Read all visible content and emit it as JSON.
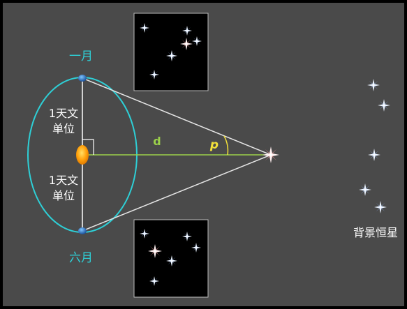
{
  "labels": {
    "january": "一月",
    "june": "六月",
    "au_top": [
      "1天文",
      "单位"
    ],
    "au_bottom": [
      "1天文",
      "单位"
    ],
    "distance": "d",
    "parallax": "p",
    "background_stars": "背景恒星"
  },
  "colors": {
    "background": "#4a4a4a",
    "frame": "#000000",
    "orbit": "#2ecfd6",
    "month_label": "#2ecfd6",
    "baseline": "#9bd04a",
    "distance_label": "#9bd04a",
    "parallax_label": "#f2e03a",
    "sightline": "#e6e6e6",
    "text": "#ffffff"
  },
  "icons": {
    "earth": "earth-dot-icon",
    "sun": "sun-icon",
    "near_star": "near-star-icon",
    "background_star": "background-star-icon"
  }
}
